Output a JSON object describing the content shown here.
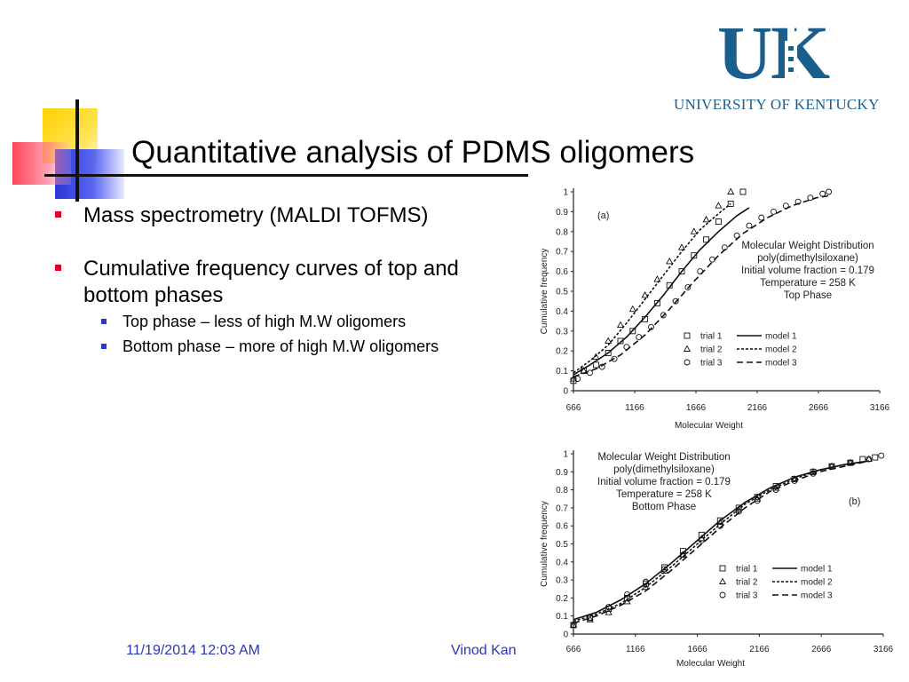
{
  "slide": {
    "title": "Quantitative analysis of PDMS oligomers",
    "bullets": [
      {
        "text": "Mass spectrometry (MALDI TOFMS)"
      },
      {
        "text": "Cumulative frequency curves of top and bottom phases",
        "sub": [
          "Top phase – less of high M.W oligomers",
          "Bottom phase – more of high M.W oligomers"
        ]
      }
    ],
    "footer": {
      "date": "11/19/2014 12:03 AM",
      "author": "Vinod Kan"
    }
  },
  "logo": {
    "mark": "UK",
    "name": "UNIVERSITY OF KENTUCKY",
    "color": "#1a5e8e"
  },
  "chart_data": [
    {
      "type": "scatter",
      "panel_label": "(a)",
      "xlabel": "Molecular Weight",
      "ylabel": "Cumulative frequency",
      "xticks": [
        666,
        1166,
        1666,
        2166,
        2666,
        3166
      ],
      "yticks": [
        0,
        0.1,
        0.2,
        0.3,
        0.4,
        0.5,
        0.6,
        0.7,
        0.8,
        0.9,
        1
      ],
      "xlim": [
        666,
        3166
      ],
      "ylim": [
        0,
        1
      ],
      "annotation": [
        "Molecular Weight Distribution",
        "poly(dimethylsiloxane)",
        "Initial volume fraction = 0.179",
        "Temperature = 258 K",
        "Top Phase"
      ],
      "legend": {
        "trials": [
          "trial 1",
          "trial 2",
          "trial 3"
        ],
        "models": [
          "model 1",
          "model 2",
          "model 3"
        ]
      },
      "series": [
        {
          "name": "trial 1",
          "marker": "square",
          "x": [
            666,
            750,
            850,
            950,
            1050,
            1150,
            1250,
            1350,
            1450,
            1550,
            1650,
            1750,
            1850,
            1950,
            2050
          ],
          "y": [
            0.05,
            0.1,
            0.13,
            0.19,
            0.25,
            0.3,
            0.36,
            0.44,
            0.53,
            0.6,
            0.68,
            0.76,
            0.85,
            0.94,
            1.0
          ]
        },
        {
          "name": "trial 2",
          "marker": "triangle",
          "x": [
            666,
            750,
            850,
            950,
            1050,
            1150,
            1250,
            1350,
            1450,
            1550,
            1650,
            1750,
            1850,
            1950
          ],
          "y": [
            0.06,
            0.1,
            0.17,
            0.25,
            0.33,
            0.41,
            0.48,
            0.56,
            0.65,
            0.72,
            0.8,
            0.86,
            0.93,
            1.0
          ]
        },
        {
          "name": "trial 3",
          "marker": "circle",
          "x": [
            700,
            800,
            900,
            1000,
            1100,
            1200,
            1300,
            1400,
            1500,
            1600,
            1700,
            1800,
            1900,
            2000,
            2100,
            2200,
            2300,
            2400,
            2500,
            2600,
            2700,
            2750
          ],
          "y": [
            0.06,
            0.09,
            0.12,
            0.16,
            0.22,
            0.27,
            0.32,
            0.38,
            0.45,
            0.52,
            0.6,
            0.66,
            0.72,
            0.78,
            0.83,
            0.87,
            0.9,
            0.93,
            0.95,
            0.97,
            0.99,
            1.0
          ]
        },
        {
          "name": "model 1",
          "style": "solid",
          "x": [
            666,
            800,
            950,
            1100,
            1250,
            1400,
            1550,
            1700,
            1850,
            2000,
            2100
          ],
          "y": [
            0.08,
            0.13,
            0.19,
            0.27,
            0.37,
            0.48,
            0.6,
            0.71,
            0.8,
            0.88,
            0.92
          ]
        },
        {
          "name": "model 2",
          "style": "dotted",
          "x": [
            666,
            800,
            950,
            1100,
            1250,
            1400,
            1550,
            1700,
            1850,
            1950
          ],
          "y": [
            0.09,
            0.15,
            0.23,
            0.34,
            0.46,
            0.58,
            0.7,
            0.81,
            0.89,
            0.94
          ]
        },
        {
          "name": "model 3",
          "style": "dashed",
          "x": [
            666,
            850,
            1050,
            1250,
            1450,
            1650,
            1850,
            2050,
            2250,
            2450,
            2650,
            2750
          ],
          "y": [
            0.07,
            0.11,
            0.18,
            0.28,
            0.41,
            0.55,
            0.68,
            0.79,
            0.87,
            0.93,
            0.97,
            0.98
          ]
        }
      ]
    },
    {
      "type": "scatter",
      "panel_label": "(b)",
      "xlabel": "Molecular Weight",
      "ylabel": "Cumulative frequency",
      "xticks": [
        666,
        1166,
        1666,
        2166,
        2666,
        3166
      ],
      "yticks": [
        0,
        0.1,
        0.2,
        0.3,
        0.4,
        0.5,
        0.6,
        0.7,
        0.8,
        0.9,
        1
      ],
      "xlim": [
        666,
        3166
      ],
      "ylim": [
        0,
        1
      ],
      "annotation": [
        "Molecular Weight Distribution",
        "poly(dimethylsiloxane)",
        "Initial volume fraction = 0.179",
        "Temperature = 258 K",
        "Bottom Phase"
      ],
      "legend": {
        "trials": [
          "trial 1",
          "trial 2",
          "trial 3"
        ],
        "models": [
          "model 1",
          "model 2",
          "model 3"
        ]
      },
      "series": [
        {
          "name": "trial 1",
          "marker": "square",
          "x": [
            666,
            800,
            950,
            1100,
            1250,
            1400,
            1550,
            1700,
            1850,
            2000,
            2150,
            2300,
            2450,
            2600,
            2750,
            2900,
            3000,
            3100
          ],
          "y": [
            0.05,
            0.09,
            0.14,
            0.2,
            0.28,
            0.37,
            0.46,
            0.55,
            0.63,
            0.7,
            0.76,
            0.82,
            0.86,
            0.9,
            0.93,
            0.95,
            0.97,
            0.98
          ]
        },
        {
          "name": "trial 2",
          "marker": "triangle",
          "x": [
            666,
            800,
            950,
            1100,
            1250,
            1400,
            1550,
            1700,
            1850,
            2000,
            2150,
            2300,
            2450,
            2600,
            2750,
            2900,
            3050
          ],
          "y": [
            0.05,
            0.08,
            0.12,
            0.18,
            0.26,
            0.35,
            0.44,
            0.53,
            0.62,
            0.69,
            0.75,
            0.81,
            0.86,
            0.9,
            0.93,
            0.95,
            0.97
          ]
        },
        {
          "name": "trial 3",
          "marker": "circle",
          "x": [
            666,
            800,
            950,
            1100,
            1250,
            1400,
            1550,
            1700,
            1850,
            2000,
            2150,
            2300,
            2450,
            2600,
            2750,
            2900,
            3050,
            3150
          ],
          "y": [
            0.05,
            0.09,
            0.15,
            0.22,
            0.29,
            0.36,
            0.44,
            0.52,
            0.6,
            0.68,
            0.74,
            0.8,
            0.85,
            0.89,
            0.93,
            0.95,
            0.97,
            0.99
          ]
        },
        {
          "name": "model 1",
          "style": "solid",
          "x": [
            666,
            850,
            1050,
            1250,
            1450,
            1650,
            1850,
            2050,
            2250,
            2450,
            2650,
            2850,
            3050
          ],
          "y": [
            0.08,
            0.12,
            0.19,
            0.28,
            0.39,
            0.51,
            0.63,
            0.73,
            0.81,
            0.87,
            0.91,
            0.94,
            0.96
          ]
        },
        {
          "name": "model 2",
          "style": "dotted",
          "x": [
            666,
            850,
            1050,
            1250,
            1450,
            1650,
            1850,
            2050,
            2250,
            2450,
            2650,
            2850,
            3050
          ],
          "y": [
            0.07,
            0.11,
            0.17,
            0.26,
            0.37,
            0.49,
            0.61,
            0.72,
            0.8,
            0.86,
            0.91,
            0.94,
            0.96
          ]
        },
        {
          "name": "model 3",
          "style": "dashed",
          "x": [
            666,
            850,
            1050,
            1250,
            1450,
            1650,
            1850,
            2050,
            2250,
            2450,
            2650,
            2850,
            3050
          ],
          "y": [
            0.06,
            0.1,
            0.16,
            0.24,
            0.35,
            0.47,
            0.59,
            0.7,
            0.79,
            0.85,
            0.9,
            0.93,
            0.96
          ]
        }
      ]
    }
  ]
}
